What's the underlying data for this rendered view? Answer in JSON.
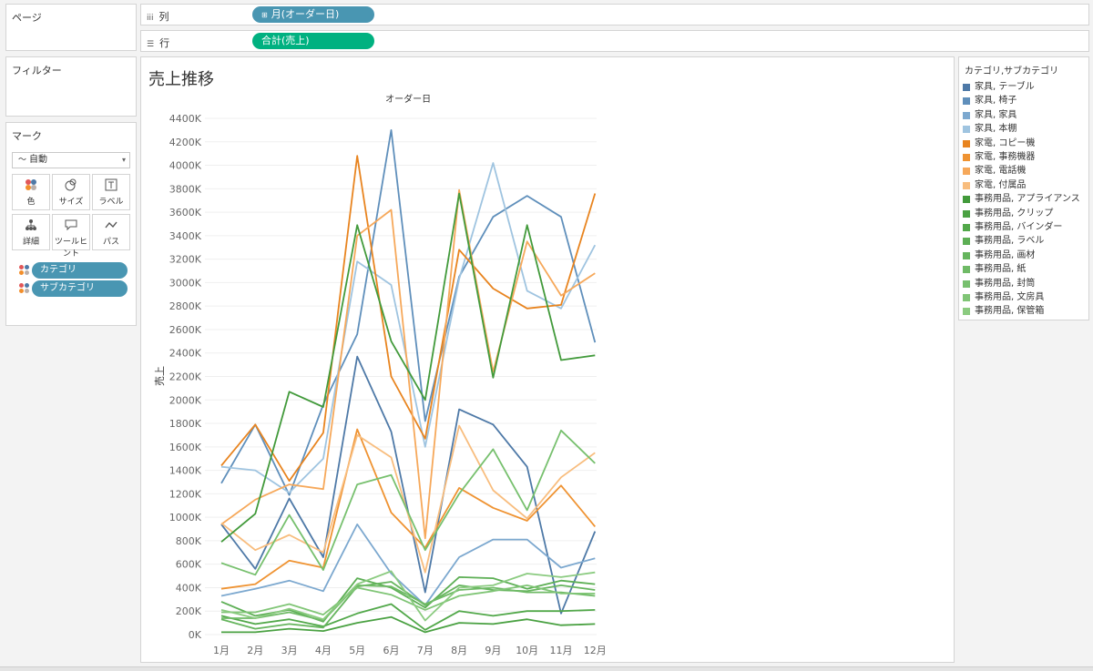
{
  "sidebar": {
    "pages_label": "ページ",
    "filters_label": "フィルター",
    "marks": {
      "title": "マーク",
      "type": "自動",
      "type_icon": "line-icon",
      "buttons": [
        {
          "label": "色",
          "icon": "color-icon"
        },
        {
          "label": "サイズ",
          "icon": "size-icon"
        },
        {
          "label": "ラベル",
          "icon": "label-icon"
        },
        {
          "label": "詳細",
          "icon": "detail-icon"
        },
        {
          "label": "ツールヒント",
          "icon": "tooltip-icon"
        },
        {
          "label": "パス",
          "icon": "path-icon"
        }
      ],
      "pills": [
        "カテゴリ",
        "サブカテゴリ"
      ]
    }
  },
  "shelves": {
    "columns_label": "列",
    "columns_pill": "月(オーダー日)",
    "rows_label": "行",
    "rows_pill": "合計(売上)"
  },
  "legend": {
    "title": "カテゴリ,サブカテゴリ",
    "items": [
      {
        "label": "家具, テーブル",
        "color": "#4e79a7"
      },
      {
        "label": "家具, 椅子",
        "color": "#5f8fbb"
      },
      {
        "label": "家具, 家具",
        "color": "#7ca8cf"
      },
      {
        "label": "家具, 本棚",
        "color": "#9fc4e0"
      },
      {
        "label": "家電, コピー機",
        "color": "#e8841f"
      },
      {
        "label": "家電, 事務機器",
        "color": "#ef9332"
      },
      {
        "label": "家電, 電話機",
        "color": "#f6a85a"
      },
      {
        "label": "家電, 付属品",
        "color": "#f8bd7e"
      },
      {
        "label": "事務用品, アプライアンス",
        "color": "#429a3b"
      },
      {
        "label": "事務用品, クリップ",
        "color": "#4aa142"
      },
      {
        "label": "事務用品, バインダー",
        "color": "#52a84a"
      },
      {
        "label": "事務用品, ラベル",
        "color": "#5daf55"
      },
      {
        "label": "事務用品, 画材",
        "color": "#66b55e"
      },
      {
        "label": "事務用品, 紙",
        "color": "#6fba66"
      },
      {
        "label": "事務用品, 封筒",
        "color": "#77c06e"
      },
      {
        "label": "事務用品, 文房具",
        "color": "#80c576"
      },
      {
        "label": "事務用品, 保管箱",
        "color": "#8bcb80"
      }
    ]
  },
  "chart_data": {
    "type": "line",
    "title": "売上推移",
    "header": "オーダー日",
    "ylabel": "売上",
    "ylim": [
      0,
      4400000
    ],
    "yticks": [
      0,
      200000,
      400000,
      600000,
      800000,
      1000000,
      1200000,
      1400000,
      1600000,
      1800000,
      2000000,
      2200000,
      2400000,
      2600000,
      2800000,
      3000000,
      3200000,
      3400000,
      3600000,
      3800000,
      4000000,
      4200000,
      4400000
    ],
    "ytick_labels": [
      "0K",
      "200K",
      "400K",
      "600K",
      "800K",
      "1000K",
      "1200K",
      "1400K",
      "1600K",
      "1800K",
      "2000K",
      "2200K",
      "2400K",
      "2600K",
      "2800K",
      "3000K",
      "3200K",
      "3400K",
      "3600K",
      "3800K",
      "4000K",
      "4200K",
      "4400K"
    ],
    "categories": [
      "1月",
      "2月",
      "3月",
      "4月",
      "5月",
      "6月",
      "7月",
      "8月",
      "9月",
      "10月",
      "11月",
      "12月"
    ],
    "grid": true,
    "series": [
      {
        "name": "家具, テーブル",
        "color": "#4e79a7",
        "values": [
          940000,
          560000,
          1160000,
          660000,
          2370000,
          1730000,
          360000,
          1920000,
          1790000,
          1430000,
          180000,
          880000
        ]
      },
      {
        "name": "家具, 椅子",
        "color": "#5f8fbb",
        "values": [
          1290000,
          1790000,
          1190000,
          1960000,
          2560000,
          4300000,
          1820000,
          3050000,
          3560000,
          3740000,
          3560000,
          2490000
        ]
      },
      {
        "name": "家具, 家具",
        "color": "#7ca8cf",
        "values": [
          330000,
          390000,
          460000,
          370000,
          940000,
          520000,
          250000,
          660000,
          810000,
          810000,
          570000,
          650000
        ]
      },
      {
        "name": "家具, 本棚",
        "color": "#9fc4e0",
        "values": [
          1430000,
          1400000,
          1210000,
          1500000,
          3180000,
          2980000,
          1600000,
          3030000,
          4020000,
          2930000,
          2780000,
          3320000
        ]
      },
      {
        "name": "家電, コピー機",
        "color": "#e8841f",
        "values": [
          1440000,
          1790000,
          1310000,
          1720000,
          4080000,
          2200000,
          1670000,
          3280000,
          2950000,
          2780000,
          2810000,
          3760000
        ]
      },
      {
        "name": "家電, 事務機器",
        "color": "#ef9332",
        "values": [
          390000,
          430000,
          630000,
          570000,
          1750000,
          1040000,
          740000,
          1250000,
          1080000,
          970000,
          1270000,
          920000
        ]
      },
      {
        "name": "家電, 電話機",
        "color": "#f6a85a",
        "values": [
          940000,
          1150000,
          1280000,
          1240000,
          3400000,
          3620000,
          820000,
          3790000,
          2240000,
          3350000,
          2890000,
          3080000
        ]
      },
      {
        "name": "家電, 付属品",
        "color": "#f8bd7e",
        "values": [
          950000,
          720000,
          850000,
          700000,
          1700000,
          1510000,
          530000,
          1780000,
          1230000,
          990000,
          1340000,
          1550000
        ]
      },
      {
        "name": "事務用品, アプライアンス",
        "color": "#429a3b",
        "values": [
          790000,
          1030000,
          2070000,
          1940000,
          3490000,
          2500000,
          2000000,
          3760000,
          2190000,
          3490000,
          2340000,
          2380000
        ]
      },
      {
        "name": "事務用品, クリップ",
        "color": "#4aa142",
        "values": [
          20000,
          20000,
          50000,
          30000,
          100000,
          150000,
          20000,
          100000,
          90000,
          130000,
          80000,
          90000
        ]
      },
      {
        "name": "事務用品, バインダー",
        "color": "#52a84a",
        "values": [
          160000,
          90000,
          130000,
          70000,
          180000,
          260000,
          40000,
          200000,
          160000,
          200000,
          200000,
          210000
        ]
      },
      {
        "name": "事務用品, ラベル",
        "color": "#5daf55",
        "values": [
          280000,
          160000,
          210000,
          110000,
          480000,
          400000,
          230000,
          490000,
          480000,
          390000,
          460000,
          430000
        ]
      },
      {
        "name": "事務用品, 画材",
        "color": "#66b55e",
        "values": [
          130000,
          50000,
          90000,
          60000,
          410000,
          450000,
          250000,
          420000,
          380000,
          370000,
          420000,
          380000
        ]
      },
      {
        "name": "事務用品, 紙",
        "color": "#6fba66",
        "values": [
          140000,
          140000,
          190000,
          120000,
          420000,
          410000,
          260000,
          380000,
          400000,
          360000,
          360000,
          330000
        ]
      },
      {
        "name": "事務用品, 封筒",
        "color": "#77c06e",
        "values": [
          610000,
          510000,
          1020000,
          550000,
          1280000,
          1360000,
          720000,
          1200000,
          1580000,
          1060000,
          1740000,
          1460000
        ]
      },
      {
        "name": "事務用品, 文房具",
        "color": "#80c576",
        "values": [
          190000,
          190000,
          260000,
          170000,
          400000,
          340000,
          210000,
          330000,
          370000,
          420000,
          350000,
          350000
        ]
      },
      {
        "name": "事務用品, 保管箱",
        "color": "#8bcb80",
        "values": [
          210000,
          140000,
          220000,
          130000,
          430000,
          540000,
          120000,
          400000,
          420000,
          520000,
          490000,
          530000
        ]
      }
    ]
  }
}
